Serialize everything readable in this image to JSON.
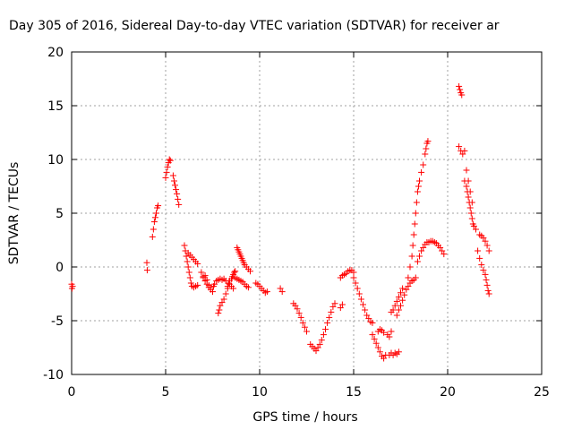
{
  "chart_data": {
    "type": "scatter",
    "title": "Day 305 of 2016, Sidereal Day-to-day VTEC variation (SDTVAR) for receiver ar",
    "xlabel": "GPS time / hours",
    "ylabel": "SDTVAR / TECUs",
    "xlim": [
      0,
      25
    ],
    "ylim": [
      -10,
      20
    ],
    "x_ticks": [
      "0",
      "5",
      "10",
      "15",
      "20",
      "25"
    ],
    "y_ticks": [
      "-10",
      "-5",
      "0",
      "5",
      "10",
      "15",
      "20"
    ],
    "grid": true,
    "marker": "plus",
    "color": "#ff0000",
    "series": [
      {
        "points": [
          [
            0.0,
            -1.6
          ],
          [
            0.02,
            -2.0
          ],
          [
            0.05,
            -1.8
          ],
          [
            4.0,
            0.4
          ],
          [
            4.02,
            -0.3
          ],
          [
            4.3,
            2.8
          ],
          [
            4.35,
            3.5
          ],
          [
            4.4,
            4.2
          ],
          [
            4.45,
            4.6
          ],
          [
            4.5,
            5.0
          ],
          [
            4.55,
            5.5
          ],
          [
            4.6,
            5.7
          ],
          [
            5.0,
            8.3
          ],
          [
            5.05,
            8.8
          ],
          [
            5.1,
            9.3
          ],
          [
            5.15,
            9.7
          ],
          [
            5.2,
            10.0
          ],
          [
            5.25,
            9.9
          ],
          [
            5.4,
            8.5
          ],
          [
            5.45,
            8.0
          ],
          [
            5.5,
            7.6
          ],
          [
            5.55,
            7.2
          ],
          [
            5.6,
            6.8
          ],
          [
            5.65,
            6.3
          ],
          [
            5.7,
            5.8
          ],
          [
            6.0,
            2.0
          ],
          [
            6.05,
            1.5
          ],
          [
            6.1,
            1.0
          ],
          [
            6.15,
            0.5
          ],
          [
            6.2,
            0.0
          ],
          [
            6.25,
            -0.5
          ],
          [
            6.3,
            -1.0
          ],
          [
            6.35,
            -1.5
          ],
          [
            6.4,
            -1.8
          ],
          [
            6.5,
            -1.9
          ],
          [
            6.6,
            -1.8
          ],
          [
            6.7,
            -1.7
          ],
          [
            6.2,
            1.3
          ],
          [
            6.3,
            1.1
          ],
          [
            6.4,
            0.9
          ],
          [
            6.5,
            0.7
          ],
          [
            6.6,
            0.5
          ],
          [
            6.7,
            0.3
          ],
          [
            6.9,
            -0.5
          ],
          [
            7.0,
            -0.9
          ],
          [
            7.1,
            -1.3
          ],
          [
            7.2,
            -1.6
          ],
          [
            7.3,
            -1.9
          ],
          [
            7.4,
            -2.1
          ],
          [
            7.5,
            -2.3
          ],
          [
            7.0,
            -1.0
          ],
          [
            7.1,
            -0.8
          ],
          [
            7.2,
            -1.2
          ],
          [
            7.3,
            -1.7
          ],
          [
            7.4,
            -1.9
          ],
          [
            7.55,
            -1.8
          ],
          [
            7.6,
            -1.6
          ],
          [
            7.7,
            -1.3
          ],
          [
            7.8,
            -1.2
          ],
          [
            7.9,
            -1.1
          ],
          [
            8.0,
            -1.2
          ],
          [
            8.1,
            -1.1
          ],
          [
            8.2,
            -1.3
          ],
          [
            7.8,
            -4.3
          ],
          [
            7.85,
            -4.0
          ],
          [
            7.9,
            -3.6
          ],
          [
            8.0,
            -3.3
          ],
          [
            8.1,
            -3.0
          ],
          [
            8.2,
            -2.5
          ],
          [
            8.3,
            -2.0
          ],
          [
            8.35,
            -1.5
          ],
          [
            8.4,
            -1.3
          ],
          [
            8.5,
            -1.1
          ],
          [
            8.55,
            -0.9
          ],
          [
            8.6,
            -0.7
          ],
          [
            8.65,
            -0.5
          ],
          [
            8.7,
            -0.4
          ],
          [
            8.3,
            -1.8
          ],
          [
            8.4,
            -1.6
          ],
          [
            8.5,
            -1.8
          ],
          [
            8.6,
            -2.0
          ],
          [
            8.7,
            -1.0
          ],
          [
            8.8,
            -1.1
          ],
          [
            8.9,
            -1.2
          ],
          [
            9.0,
            -1.3
          ],
          [
            9.1,
            -1.4
          ],
          [
            9.2,
            -1.6
          ],
          [
            9.3,
            -1.8
          ],
          [
            9.4,
            -1.9
          ],
          [
            8.8,
            1.8
          ],
          [
            8.85,
            1.6
          ],
          [
            8.9,
            1.4
          ],
          [
            8.95,
            1.2
          ],
          [
            9.0,
            1.0
          ],
          [
            9.05,
            0.8
          ],
          [
            9.1,
            0.6
          ],
          [
            9.15,
            0.4
          ],
          [
            9.2,
            0.2
          ],
          [
            9.3,
            0.0
          ],
          [
            9.4,
            -0.2
          ],
          [
            9.5,
            -0.4
          ],
          [
            9.8,
            -1.5
          ],
          [
            9.9,
            -1.6
          ],
          [
            10.0,
            -1.8
          ],
          [
            10.1,
            -2.0
          ],
          [
            10.2,
            -2.2
          ],
          [
            10.3,
            -2.4
          ],
          [
            10.4,
            -2.3
          ],
          [
            11.1,
            -2.0
          ],
          [
            11.2,
            -2.3
          ],
          [
            11.8,
            -3.4
          ],
          [
            11.9,
            -3.6
          ],
          [
            12.0,
            -3.9
          ],
          [
            12.1,
            -4.3
          ],
          [
            12.2,
            -4.7
          ],
          [
            12.3,
            -5.2
          ],
          [
            12.4,
            -5.6
          ],
          [
            12.5,
            -6.0
          ],
          [
            12.7,
            -7.2
          ],
          [
            12.8,
            -7.4
          ],
          [
            12.9,
            -7.6
          ],
          [
            13.0,
            -7.8
          ],
          [
            13.1,
            -7.5
          ],
          [
            13.2,
            -7.2
          ],
          [
            13.3,
            -6.8
          ],
          [
            13.4,
            -6.3
          ],
          [
            13.5,
            -5.8
          ],
          [
            13.6,
            -5.2
          ],
          [
            13.7,
            -4.7
          ],
          [
            13.8,
            -4.2
          ],
          [
            13.9,
            -3.7
          ],
          [
            14.0,
            -3.4
          ],
          [
            14.3,
            -3.8
          ],
          [
            14.4,
            -3.5
          ],
          [
            14.3,
            -1.0
          ],
          [
            14.4,
            -0.8
          ],
          [
            14.5,
            -0.7
          ],
          [
            14.6,
            -0.6
          ],
          [
            14.7,
            -0.4
          ],
          [
            14.8,
            -0.3
          ],
          [
            14.9,
            -0.3
          ],
          [
            15.0,
            -0.5
          ],
          [
            15.0,
            -1.0
          ],
          [
            15.1,
            -1.5
          ],
          [
            15.2,
            -2.0
          ],
          [
            15.3,
            -2.5
          ],
          [
            15.4,
            -3.0
          ],
          [
            15.5,
            -3.5
          ],
          [
            15.6,
            -4.0
          ],
          [
            15.7,
            -4.5
          ],
          [
            15.8,
            -4.8
          ],
          [
            15.9,
            -5.1
          ],
          [
            16.0,
            -5.2
          ],
          [
            16.0,
            -6.3
          ],
          [
            16.1,
            -6.7
          ],
          [
            16.2,
            -7.1
          ],
          [
            16.3,
            -7.5
          ],
          [
            16.4,
            -7.9
          ],
          [
            16.5,
            -8.3
          ],
          [
            16.6,
            -8.5
          ],
          [
            16.7,
            -8.2
          ],
          [
            16.3,
            -6.0
          ],
          [
            16.4,
            -5.8
          ],
          [
            16.5,
            -5.9
          ],
          [
            16.6,
            -6.1
          ],
          [
            16.8,
            -6.3
          ],
          [
            16.9,
            -6.5
          ],
          [
            17.0,
            -6.0
          ],
          [
            16.9,
            -8.2
          ],
          [
            17.0,
            -8.0
          ],
          [
            17.1,
            -8.2
          ],
          [
            17.2,
            -8.0
          ],
          [
            17.3,
            -8.1
          ],
          [
            17.4,
            -7.9
          ],
          [
            17.0,
            -4.2
          ],
          [
            17.1,
            -4.0
          ],
          [
            17.2,
            -3.6
          ],
          [
            17.3,
            -3.2
          ],
          [
            17.4,
            -2.8
          ],
          [
            17.5,
            -2.4
          ],
          [
            17.6,
            -2.0
          ],
          [
            17.3,
            -4.5
          ],
          [
            17.4,
            -4.0
          ],
          [
            17.5,
            -3.6
          ],
          [
            17.6,
            -3.1
          ],
          [
            17.7,
            -2.6
          ],
          [
            17.8,
            -2.1
          ],
          [
            17.9,
            -1.8
          ],
          [
            18.0,
            -1.5
          ],
          [
            18.1,
            -1.3
          ],
          [
            18.2,
            -1.2
          ],
          [
            18.3,
            -1.0
          ],
          [
            17.9,
            -1.0
          ],
          [
            18.0,
            0.0
          ],
          [
            18.1,
            1.0
          ],
          [
            18.15,
            2.0
          ],
          [
            18.2,
            3.0
          ],
          [
            18.25,
            4.0
          ],
          [
            18.3,
            5.0
          ],
          [
            18.35,
            6.0
          ],
          [
            18.4,
            7.0
          ],
          [
            18.45,
            7.5
          ],
          [
            18.5,
            8.0
          ],
          [
            18.6,
            8.8
          ],
          [
            18.7,
            9.5
          ],
          [
            18.8,
            10.5
          ],
          [
            18.85,
            11.0
          ],
          [
            18.9,
            11.5
          ],
          [
            18.95,
            11.7
          ],
          [
            18.4,
            0.5
          ],
          [
            18.5,
            1.0
          ],
          [
            18.6,
            1.5
          ],
          [
            18.7,
            1.8
          ],
          [
            18.8,
            2.1
          ],
          [
            18.9,
            2.3
          ],
          [
            19.0,
            2.3
          ],
          [
            19.1,
            2.4
          ],
          [
            19.2,
            2.4
          ],
          [
            19.3,
            2.3
          ],
          [
            19.4,
            2.2
          ],
          [
            19.5,
            2.0
          ],
          [
            19.6,
            1.8
          ],
          [
            19.7,
            1.5
          ],
          [
            19.8,
            1.2
          ],
          [
            20.6,
            16.8
          ],
          [
            20.65,
            16.5
          ],
          [
            20.7,
            16.2
          ],
          [
            20.75,
            16.0
          ],
          [
            20.6,
            11.2
          ],
          [
            20.7,
            10.8
          ],
          [
            20.8,
            10.5
          ],
          [
            20.9,
            10.8
          ],
          [
            20.9,
            8.0
          ],
          [
            21.0,
            7.5
          ],
          [
            21.05,
            7.0
          ],
          [
            21.1,
            6.5
          ],
          [
            21.15,
            6.0
          ],
          [
            21.2,
            5.5
          ],
          [
            21.25,
            5.0
          ],
          [
            21.3,
            4.5
          ],
          [
            21.35,
            4.0
          ],
          [
            21.4,
            3.8
          ],
          [
            21.5,
            3.5
          ],
          [
            21.0,
            9.0
          ],
          [
            21.1,
            8.0
          ],
          [
            21.2,
            7.0
          ],
          [
            21.3,
            6.0
          ],
          [
            21.7,
            3.0
          ],
          [
            21.8,
            2.9
          ],
          [
            21.9,
            2.7
          ],
          [
            22.0,
            2.4
          ],
          [
            22.1,
            2.0
          ],
          [
            22.2,
            1.5
          ],
          [
            21.6,
            1.5
          ],
          [
            21.7,
            0.8
          ],
          [
            21.8,
            0.2
          ],
          [
            21.9,
            -0.3
          ],
          [
            22.0,
            -0.7
          ],
          [
            22.05,
            -1.2
          ],
          [
            22.1,
            -1.7
          ],
          [
            22.15,
            -2.2
          ],
          [
            22.2,
            -2.5
          ]
        ]
      }
    ]
  }
}
